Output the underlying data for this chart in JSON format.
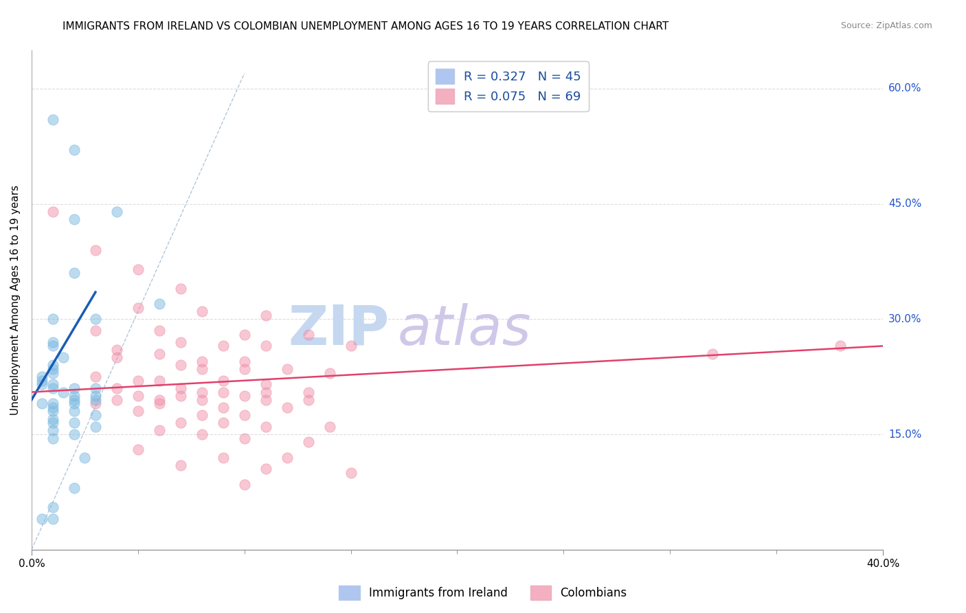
{
  "title": "IMMIGRANTS FROM IRELAND VS COLOMBIAN UNEMPLOYMENT AMONG AGES 16 TO 19 YEARS CORRELATION CHART",
  "source": "Source: ZipAtlas.com",
  "ylabel": "Unemployment Among Ages 16 to 19 years",
  "legend_bottom": [
    "Immigrants from Ireland",
    "Colombians"
  ],
  "ireland_color": "#7ab8e0",
  "colombia_color": "#f090aa",
  "ireland_scatter": [
    [
      0.001,
      0.56
    ],
    [
      0.002,
      0.52
    ],
    [
      0.004,
      0.44
    ],
    [
      0.002,
      0.43
    ],
    [
      0.002,
      0.36
    ],
    [
      0.006,
      0.32
    ],
    [
      0.003,
      0.3
    ],
    [
      0.001,
      0.3
    ],
    [
      0.001,
      0.27
    ],
    [
      0.001,
      0.265
    ],
    [
      0.0015,
      0.25
    ],
    [
      0.001,
      0.24
    ],
    [
      0.001,
      0.235
    ],
    [
      0.001,
      0.23
    ],
    [
      0.0005,
      0.225
    ],
    [
      0.0005,
      0.22
    ],
    [
      0.0005,
      0.215
    ],
    [
      0.001,
      0.215
    ],
    [
      0.001,
      0.21
    ],
    [
      0.002,
      0.21
    ],
    [
      0.003,
      0.21
    ],
    [
      0.0015,
      0.205
    ],
    [
      0.002,
      0.2
    ],
    [
      0.003,
      0.2
    ],
    [
      0.002,
      0.195
    ],
    [
      0.003,
      0.195
    ],
    [
      0.0005,
      0.19
    ],
    [
      0.001,
      0.19
    ],
    [
      0.002,
      0.19
    ],
    [
      0.001,
      0.185
    ],
    [
      0.001,
      0.18
    ],
    [
      0.002,
      0.18
    ],
    [
      0.003,
      0.175
    ],
    [
      0.001,
      0.17
    ],
    [
      0.001,
      0.165
    ],
    [
      0.002,
      0.165
    ],
    [
      0.003,
      0.16
    ],
    [
      0.001,
      0.155
    ],
    [
      0.002,
      0.15
    ],
    [
      0.001,
      0.145
    ],
    [
      0.0025,
      0.12
    ],
    [
      0.002,
      0.08
    ],
    [
      0.001,
      0.055
    ],
    [
      0.0005,
      0.04
    ],
    [
      0.001,
      0.04
    ]
  ],
  "colombia_scatter": [
    [
      0.001,
      0.44
    ],
    [
      0.003,
      0.39
    ],
    [
      0.005,
      0.365
    ],
    [
      0.007,
      0.34
    ],
    [
      0.005,
      0.315
    ],
    [
      0.008,
      0.31
    ],
    [
      0.011,
      0.305
    ],
    [
      0.003,
      0.285
    ],
    [
      0.006,
      0.285
    ],
    [
      0.01,
      0.28
    ],
    [
      0.013,
      0.28
    ],
    [
      0.007,
      0.27
    ],
    [
      0.009,
      0.265
    ],
    [
      0.011,
      0.265
    ],
    [
      0.015,
      0.265
    ],
    [
      0.004,
      0.26
    ],
    [
      0.006,
      0.255
    ],
    [
      0.004,
      0.25
    ],
    [
      0.008,
      0.245
    ],
    [
      0.01,
      0.245
    ],
    [
      0.007,
      0.24
    ],
    [
      0.008,
      0.235
    ],
    [
      0.01,
      0.235
    ],
    [
      0.012,
      0.235
    ],
    [
      0.014,
      0.23
    ],
    [
      0.003,
      0.225
    ],
    [
      0.005,
      0.22
    ],
    [
      0.006,
      0.22
    ],
    [
      0.009,
      0.22
    ],
    [
      0.011,
      0.215
    ],
    [
      0.004,
      0.21
    ],
    [
      0.007,
      0.21
    ],
    [
      0.008,
      0.205
    ],
    [
      0.009,
      0.205
    ],
    [
      0.011,
      0.205
    ],
    [
      0.013,
      0.205
    ],
    [
      0.005,
      0.2
    ],
    [
      0.007,
      0.2
    ],
    [
      0.01,
      0.2
    ],
    [
      0.004,
      0.195
    ],
    [
      0.006,
      0.195
    ],
    [
      0.008,
      0.195
    ],
    [
      0.011,
      0.195
    ],
    [
      0.013,
      0.195
    ],
    [
      0.003,
      0.19
    ],
    [
      0.006,
      0.19
    ],
    [
      0.009,
      0.185
    ],
    [
      0.012,
      0.185
    ],
    [
      0.005,
      0.18
    ],
    [
      0.008,
      0.175
    ],
    [
      0.01,
      0.175
    ],
    [
      0.007,
      0.165
    ],
    [
      0.009,
      0.165
    ],
    [
      0.011,
      0.16
    ],
    [
      0.014,
      0.16
    ],
    [
      0.006,
      0.155
    ],
    [
      0.008,
      0.15
    ],
    [
      0.01,
      0.145
    ],
    [
      0.013,
      0.14
    ],
    [
      0.005,
      0.13
    ],
    [
      0.009,
      0.12
    ],
    [
      0.012,
      0.12
    ],
    [
      0.007,
      0.11
    ],
    [
      0.011,
      0.105
    ],
    [
      0.015,
      0.1
    ],
    [
      0.01,
      0.085
    ],
    [
      0.032,
      0.255
    ],
    [
      0.038,
      0.265
    ]
  ],
  "ireland_line_x": [
    0.0,
    0.003
  ],
  "ireland_line_y": [
    0.195,
    0.335
  ],
  "colombia_line_x": [
    0.0,
    0.04
  ],
  "colombia_line_y": [
    0.205,
    0.265
  ],
  "dashed_line_x": [
    0.0,
    0.01
  ],
  "dashed_line_y": [
    0.0,
    0.62
  ],
  "xmin": 0.0,
  "xmax": 0.04,
  "ymin": 0.0,
  "ymax": 0.65,
  "ytick_vals": [
    0.0,
    0.15,
    0.3,
    0.45,
    0.6
  ],
  "ytick_right_vals": [
    0.6,
    0.45,
    0.3,
    0.15
  ],
  "ytick_right_labels": [
    "60.0%",
    "45.0%",
    "30.0%",
    "15.0%"
  ],
  "xtick_vals": [
    0.0,
    0.05,
    0.1,
    0.15,
    0.2,
    0.25,
    0.3,
    0.35,
    0.4
  ],
  "xtick_display_vals": [
    0.0,
    0.05,
    0.1,
    0.15,
    0.2,
    0.25,
    0.3,
    0.35,
    0.4
  ],
  "background_color": "#ffffff",
  "grid_color": "#cccccc",
  "title_fontsize": 11,
  "watermark_zip_color": "#c5d8f0",
  "watermark_atlas_color": "#d0c8e8",
  "watermark_fontsize": 58,
  "scatter_size": 120,
  "scatter_alpha": 0.5,
  "ireland_trend_color": "#1a5cb5",
  "colombia_trend_color": "#e0406a",
  "dashed_color": "#a0b8d0"
}
